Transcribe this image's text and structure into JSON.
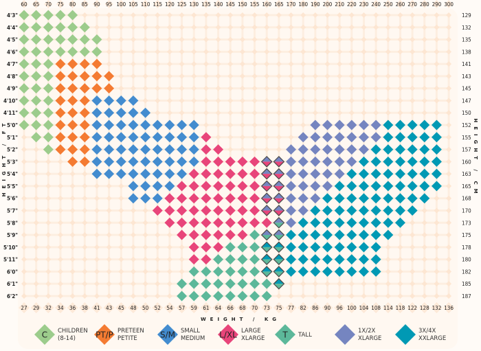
{
  "chart_data": {
    "type": "heatmap",
    "title": "",
    "x_top_label": "",
    "x_top_ticks_lbs": [
      60,
      65,
      70,
      75,
      80,
      85,
      90,
      95,
      100,
      105,
      110,
      115,
      120,
      125,
      130,
      135,
      140,
      145,
      150,
      155,
      160,
      165,
      170,
      180,
      190,
      200,
      210,
      220,
      230,
      240,
      250,
      260,
      270,
      280,
      290,
      300
    ],
    "x_bottom_label": "WEIGHT / KG",
    "x_bottom_ticks_kg": [
      27,
      29,
      32,
      34,
      36,
      38,
      41,
      43,
      45,
      48,
      50,
      52,
      54,
      57,
      59,
      61,
      64,
      66,
      68,
      70,
      73,
      75,
      77,
      82,
      86,
      90,
      96,
      100,
      104,
      108,
      114,
      118,
      122,
      128,
      132,
      136
    ],
    "y_left_label": "HEIGHT / FT",
    "y_left_ticks": [
      "4'3\"",
      "4'4\"",
      "4'5\"",
      "4'6\"",
      "4'7\"",
      "4'8\"",
      "4'9\"",
      "4'10\"",
      "4'11\"",
      "5'0\"",
      "5'1\"",
      "5'2\"",
      "5'3\"",
      "5'4\"",
      "5'5\"",
      "5'6\"",
      "5'7\"",
      "5'8\"",
      "5'9\"",
      "5'10\"",
      "5'11\"",
      "6'0\"",
      "6'1\"",
      "6'2\""
    ],
    "y_right_label": "HEIGHT / CM",
    "y_right_ticks": [
      "129",
      "132",
      "135",
      "138",
      "141",
      "143",
      "145",
      "147",
      "150",
      "152",
      "155",
      "157",
      "160",
      "163",
      "165",
      "168",
      "170",
      "173",
      "175",
      "178",
      "180",
      "182",
      "185",
      "187"
    ],
    "categories": {
      "C": {
        "symbol": "C",
        "line1": "CHILDREN",
        "line2": "(8-14)",
        "color": "#9ccc8c"
      },
      "P": {
        "symbol": "PT/P",
        "line1": "PRETEEN",
        "line2": "PETITE",
        "color": "#f47b32"
      },
      "S": {
        "symbol": "S/M",
        "line1": "SMALL",
        "line2": "MEDIUM",
        "color": "#438ccf"
      },
      "L": {
        "symbol": "L/XL",
        "line1": "LARGE",
        "line2": "XLARGE",
        "color": "#e8457a"
      },
      "T": {
        "symbol": "T",
        "line1": "TALL",
        "line2": "",
        "color": "#5cb89a"
      },
      "X1": {
        "symbol": "",
        "line1": "1X/2X",
        "line2": "XLARGE",
        "color": "#7585c0"
      },
      "X3": {
        "symbol": "",
        "line1": "3X/4X",
        "line2": "XXLARGE",
        "color": "#0099b4"
      }
    },
    "legend_order": [
      "C",
      "P",
      "S",
      "L",
      "T",
      "X1",
      "X3"
    ],
    "legend_placement": "bottom",
    "rows_note_format": "each row lists [category, from_lbs, to_lbs]; 'A/B' = split cell (top A, bottom B)",
    "rows": [
      [
        [
          "C",
          60,
          80
        ]
      ],
      [
        [
          "C",
          60,
          85
        ]
      ],
      [
        [
          "C",
          60,
          90
        ]
      ],
      [
        [
          "C",
          60,
          90
        ]
      ],
      [
        [
          "C",
          60,
          70
        ],
        [
          "P",
          75,
          90
        ]
      ],
      [
        [
          "C",
          60,
          70
        ],
        [
          "P",
          75,
          95
        ]
      ],
      [
        [
          "C",
          60,
          70
        ],
        [
          "P",
          75,
          95
        ]
      ],
      [
        [
          "C",
          60,
          70
        ],
        [
          "P",
          75,
          85
        ],
        [
          "S",
          90,
          105
        ]
      ],
      [
        [
          "C",
          60,
          70
        ],
        [
          "P",
          75,
          85
        ],
        [
          "S",
          90,
          110
        ]
      ],
      [
        [
          "C",
          60,
          70
        ],
        [
          "P",
          75,
          85
        ],
        [
          "S",
          90,
          130
        ],
        [
          "X1",
          190,
          240
        ],
        [
          "X3",
          250,
          290
        ]
      ],
      [
        [
          "C",
          65,
          70
        ],
        [
          "P",
          75,
          85
        ],
        [
          "S",
          90,
          130
        ],
        [
          "L",
          135,
          135
        ],
        [
          "X1",
          180,
          240
        ],
        [
          "X3",
          250,
          290
        ]
      ],
      [
        [
          "C",
          70,
          70
        ],
        [
          "P",
          75,
          85
        ],
        [
          "S",
          90,
          130
        ],
        [
          "L",
          135,
          140
        ],
        [
          "X1",
          170,
          230
        ],
        [
          "X3",
          240,
          290
        ]
      ],
      [
        [
          "P",
          80,
          85
        ],
        [
          "S",
          90,
          130
        ],
        [
          "L",
          135,
          155
        ],
        [
          "X1/L",
          160,
          165
        ],
        [
          "X1",
          170,
          220
        ],
        [
          "X3",
          230,
          290
        ]
      ],
      [
        [
          "S",
          90,
          125
        ],
        [
          "L",
          130,
          155
        ],
        [
          "X1/L",
          160,
          165
        ],
        [
          "X1",
          170,
          210
        ],
        [
          "X3",
          220,
          290
        ]
      ],
      [
        [
          "S",
          105,
          120
        ],
        [
          "L",
          125,
          155
        ],
        [
          "X1/L",
          160,
          165
        ],
        [
          "X1",
          170,
          200
        ],
        [
          "X3",
          210,
          290
        ]
      ],
      [
        [
          "S",
          105,
          115
        ],
        [
          "L",
          120,
          155
        ],
        [
          "X1/L",
          160,
          165
        ],
        [
          "X1",
          170,
          190
        ],
        [
          "X3",
          200,
          280
        ]
      ],
      [
        [
          "L",
          115,
          155
        ],
        [
          "X1/L",
          160,
          165
        ],
        [
          "X1",
          170,
          180
        ],
        [
          "X3",
          190,
          270
        ]
      ],
      [
        [
          "L",
          120,
          160
        ],
        [
          "X1/T",
          165,
          165
        ],
        [
          "X1",
          170,
          170
        ],
        [
          "X3",
          180,
          260
        ]
      ],
      [
        [
          "L",
          125,
          150
        ],
        [
          "T",
          155,
          155
        ],
        [
          "X1/T",
          160,
          165
        ],
        [
          "X3",
          170,
          250
        ]
      ],
      [
        [
          "L",
          130,
          140
        ],
        [
          "T",
          145,
          155
        ],
        [
          "X3/T",
          160,
          165
        ],
        [
          "X3",
          170,
          240
        ]
      ],
      [
        [
          "L",
          130,
          135
        ],
        [
          "T",
          140,
          155
        ],
        [
          "X3/T",
          160,
          165
        ],
        [
          "X3",
          170,
          240
        ]
      ],
      [
        [
          "T",
          130,
          155
        ],
        [
          "X3/T",
          160,
          165
        ],
        [
          "X3",
          170,
          240
        ]
      ],
      [
        [
          "T",
          125,
          160
        ],
        [
          "X3/T",
          165,
          165
        ]
      ],
      [
        [
          "T",
          125,
          160
        ]
      ]
    ]
  }
}
